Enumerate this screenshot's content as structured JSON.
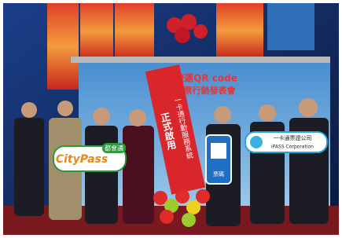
{
  "backdrop": {
    "title": "高雄捷運QR code",
    "subtitle": "週行車票行銷發表會"
  },
  "red_banner": {
    "main": "正式啟用",
    "side": "一卡通行動服務系統"
  },
  "citypass_sign": {
    "brand": "CityPass",
    "tag": "都會通"
  },
  "qr_sign": {
    "label": "票碼"
  },
  "ipass_sign": {
    "name": "一卡通票證公司",
    "english": "iPASS Corporation"
  }
}
